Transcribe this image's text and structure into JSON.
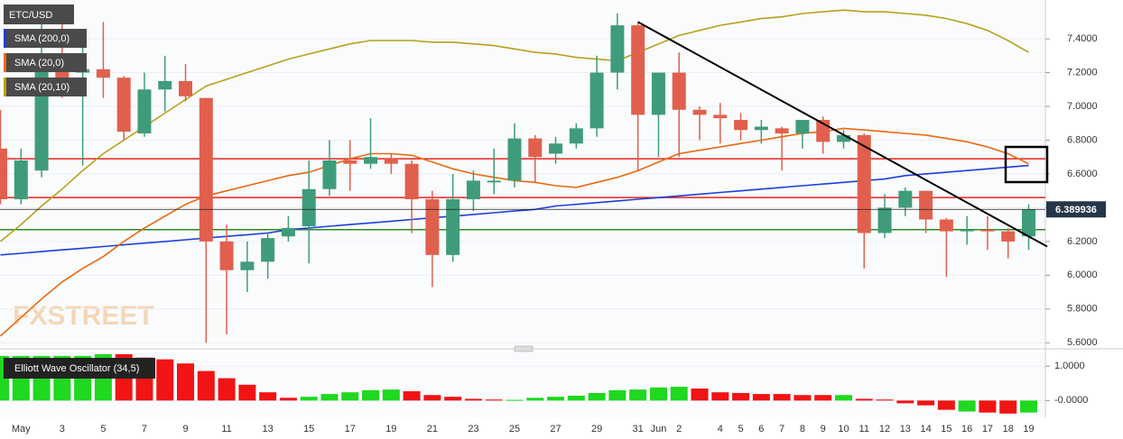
{
  "chart_data": [
    {
      "type": "candlestick",
      "symbol": "ETC/USD",
      "watermark": "FXSTREET",
      "categories": [
        null,
        "May",
        null,
        "3",
        null,
        "5",
        null,
        "7",
        null,
        "9",
        null,
        "11",
        null,
        "13",
        null,
        "15",
        null,
        "17",
        null,
        "19",
        null,
        "21",
        null,
        "23",
        null,
        "25",
        null,
        "27",
        null,
        "29",
        null,
        "31",
        "Jun",
        "2",
        null,
        "4",
        "5",
        "6",
        "7",
        "8",
        "9",
        "10",
        "11",
        "12",
        "13",
        "14",
        "15",
        "16",
        "17",
        "18",
        "19"
      ],
      "open": [
        6.75,
        6.45,
        6.62,
        7.3,
        7.2,
        7.22,
        7.17,
        6.84,
        7.1,
        7.15,
        7.05,
        6.2,
        6.03,
        6.08,
        6.23,
        6.29,
        6.51,
        6.68,
        6.66,
        6.69,
        6.66,
        6.45,
        6.12,
        6.45,
        6.55,
        6.56,
        6.81,
        6.72,
        6.78,
        6.87,
        7.2,
        7.48,
        6.95,
        7.2,
        6.98,
        6.95,
        6.92,
        6.86,
        6.87,
        6.84,
        6.92,
        6.79,
        6.83,
        6.25,
        6.4,
        6.5,
        6.33,
        6.26,
        6.27,
        6.26,
        6.23
      ],
      "high": [
        6.98,
        6.75,
        7.6,
        7.55,
        7.35,
        7.5,
        7.18,
        7.2,
        7.3,
        7.25,
        7.05,
        6.3,
        6.2,
        6.25,
        6.35,
        6.68,
        6.8,
        6.8,
        6.93,
        6.72,
        6.68,
        6.5,
        6.6,
        6.62,
        6.75,
        6.9,
        6.83,
        6.82,
        6.9,
        7.3,
        7.55,
        7.5,
        7.2,
        7.32,
        7.0,
        7.02,
        6.96,
        6.92,
        6.88,
        6.92,
        6.94,
        6.86,
        6.84,
        6.48,
        6.52,
        6.5,
        6.34,
        6.35,
        6.35,
        6.28,
        6.42
      ],
      "low": [
        6.42,
        6.42,
        6.58,
        7.05,
        6.65,
        7.05,
        6.8,
        6.82,
        6.97,
        7.03,
        5.6,
        5.65,
        5.9,
        5.98,
        6.2,
        6.07,
        6.47,
        6.5,
        6.63,
        6.6,
        6.25,
        5.93,
        6.08,
        6.38,
        6.48,
        6.52,
        6.55,
        6.66,
        6.75,
        6.82,
        7.1,
        6.62,
        6.7,
        6.7,
        6.8,
        6.78,
        6.8,
        6.78,
        6.62,
        6.75,
        6.72,
        6.75,
        6.04,
        6.22,
        6.35,
        6.25,
        5.99,
        6.18,
        6.15,
        6.1,
        6.15
      ],
      "close": [
        6.45,
        6.68,
        7.25,
        7.12,
        7.22,
        7.17,
        6.85,
        7.1,
        7.15,
        7.06,
        6.2,
        6.03,
        6.08,
        6.22,
        6.28,
        6.51,
        6.68,
        6.66,
        6.7,
        6.66,
        6.45,
        6.12,
        6.45,
        6.56,
        6.56,
        6.81,
        6.7,
        6.78,
        6.87,
        7.2,
        7.48,
        6.95,
        7.2,
        6.98,
        6.95,
        6.93,
        6.86,
        6.88,
        6.84,
        6.92,
        6.79,
        6.83,
        6.25,
        6.4,
        6.5,
        6.33,
        6.26,
        6.27,
        6.26,
        6.2,
        6.389936
      ],
      "up_color": "#3f9c7a",
      "down_color": "#e0604d",
      "series": [
        {
          "name": "SMA (200,0)",
          "color": "#1f3fd6",
          "values": [
            6.12,
            6.13,
            6.14,
            6.15,
            6.16,
            6.17,
            6.18,
            6.19,
            6.2,
            6.21,
            6.22,
            6.23,
            6.24,
            6.25,
            6.27,
            6.28,
            6.29,
            6.3,
            6.31,
            6.32,
            6.33,
            6.34,
            6.35,
            6.36,
            6.37,
            6.38,
            6.39,
            6.41,
            6.42,
            6.43,
            6.44,
            6.45,
            6.46,
            6.47,
            6.48,
            6.49,
            6.5,
            6.51,
            6.52,
            6.53,
            6.54,
            6.55,
            6.56,
            6.57,
            6.59,
            6.6,
            6.61,
            6.62,
            6.63,
            6.64,
            6.65
          ]
        },
        {
          "name": "SMA (20,0)",
          "color": "#e8690f",
          "values": [
            5.64,
            5.75,
            5.86,
            5.96,
            6.04,
            6.11,
            6.2,
            6.28,
            6.35,
            6.42,
            6.47,
            6.5,
            6.53,
            6.56,
            6.59,
            6.61,
            6.65,
            6.69,
            6.72,
            6.72,
            6.71,
            6.67,
            6.63,
            6.6,
            6.58,
            6.56,
            6.55,
            6.53,
            6.52,
            6.55,
            6.58,
            6.62,
            6.67,
            6.72,
            6.74,
            6.76,
            6.78,
            6.8,
            6.82,
            6.84,
            6.85,
            6.87,
            6.86,
            6.85,
            6.84,
            6.83,
            6.81,
            6.79,
            6.76,
            6.72,
            6.66
          ]
        },
        {
          "name": "SMA (20,10)",
          "color": "#b5a21c",
          "values": [
            6.2,
            6.3,
            6.41,
            6.51,
            6.62,
            6.72,
            6.8,
            6.88,
            6.96,
            7.04,
            7.12,
            7.16,
            7.2,
            7.24,
            7.28,
            7.31,
            7.34,
            7.37,
            7.39,
            7.39,
            7.39,
            7.38,
            7.38,
            7.37,
            7.36,
            7.34,
            7.32,
            7.31,
            7.29,
            7.28,
            7.27,
            7.32,
            7.37,
            7.42,
            7.45,
            7.48,
            7.5,
            7.52,
            7.53,
            7.55,
            7.56,
            7.57,
            7.56,
            7.56,
            7.55,
            7.54,
            7.52,
            7.49,
            7.45,
            7.39,
            7.32
          ]
        }
      ],
      "levels": [
        {
          "value": 6.69,
          "color": "#e8231e"
        },
        {
          "value": 6.46,
          "color": "#e8231e"
        },
        {
          "value": 6.27,
          "color": "#2d8a1f"
        }
      ],
      "trendline": {
        "color": "#000000",
        "points": [
          [
            31,
            7.5
          ],
          [
            50.9,
            6.17
          ]
        ]
      },
      "ylim": [
        5.58,
        7.63
      ],
      "yticks": [
        {
          "value": 5.6,
          "label": "5.6000"
        },
        {
          "value": 5.8,
          "label": "5.8000"
        },
        {
          "value": 6.0,
          "label": "6.0000"
        },
        {
          "value": 6.2,
          "label": "6.2000"
        },
        {
          "value": 6.4,
          "label": "6.4000"
        },
        {
          "value": 6.6,
          "label": "6.6000"
        },
        {
          "value": 6.8,
          "label": "6.8000"
        },
        {
          "value": 7.0,
          "label": "7.0000"
        },
        {
          "value": 7.2,
          "label": "7.2000"
        },
        {
          "value": 7.4,
          "label": "7.4000"
        }
      ],
      "grid": true
    },
    {
      "type": "bar",
      "series": [
        {
          "name": "Elliott Wave Oscillator (34,5)",
          "values": [
            1.3,
            1.3,
            1.3,
            1.3,
            1.3,
            1.35,
            1.35,
            1.25,
            1.2,
            1.08,
            0.86,
            0.65,
            0.46,
            0.24,
            0.08,
            0.11,
            0.19,
            0.24,
            0.3,
            0.32,
            0.27,
            0.16,
            0.11,
            0.05,
            0.03,
            0.02,
            0.08,
            0.11,
            0.14,
            0.22,
            0.3,
            0.32,
            0.38,
            0.4,
            0.35,
            0.24,
            0.22,
            0.19,
            0.19,
            0.16,
            0.16,
            0.16,
            0.05,
            0.03,
            -0.08,
            -0.14,
            -0.27,
            -0.32,
            -0.35,
            -0.38,
            -0.35
          ],
          "colors": [
            "#1fd81f",
            "#1fd81f",
            "#1fd81f",
            "#1fd81f",
            "#1fd81f",
            "#1fd81f",
            "#f01414",
            "#f01414",
            "#f01414",
            "#f01414",
            "#f01414",
            "#f01414",
            "#f01414",
            "#f01414",
            "#f01414",
            "#1fd81f",
            "#1fd81f",
            "#1fd81f",
            "#1fd81f",
            "#1fd81f",
            "#f01414",
            "#f01414",
            "#f01414",
            "#f01414",
            "#f01414",
            "#1fd81f",
            "#1fd81f",
            "#1fd81f",
            "#1fd81f",
            "#1fd81f",
            "#1fd81f",
            "#1fd81f",
            "#1fd81f",
            "#1fd81f",
            "#f01414",
            "#f01414",
            "#f01414",
            "#f01414",
            "#f01414",
            "#f01414",
            "#f01414",
            "#1fd81f",
            "#f01414",
            "#f01414",
            "#f01414",
            "#f01414",
            "#f01414",
            "#1fd81f",
            "#f01414",
            "#f01414",
            "#1fd81f"
          ]
        }
      ],
      "ylim": [
        -0.49,
        1.4
      ],
      "yticks": [
        {
          "value": 1.0,
          "label": "1.0000"
        },
        {
          "value": 0,
          "label": "-0.0000"
        }
      ]
    }
  ]
}
